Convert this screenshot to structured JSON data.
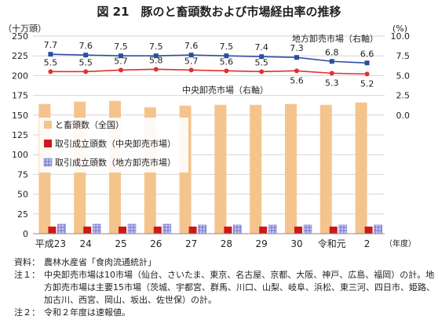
{
  "chart_data": {
    "type": "bar+line",
    "title": "図 21　豚のと畜頭数および市場経由率の推移",
    "left_axis_label": "（十万頭）",
    "right_axis_label": "(%)",
    "x_unit_label": "（年度）",
    "categories": [
      "平成23",
      "24",
      "25",
      "26",
      "27",
      "28",
      "29",
      "30",
      "令和元",
      "2"
    ],
    "left_axis": {
      "min": 0,
      "max": 250,
      "ticks": [
        0,
        25,
        50,
        75,
        100,
        125,
        150,
        175,
        200,
        225,
        250
      ]
    },
    "right_axis": {
      "min": -15,
      "max": 10,
      "ticks": [
        0.0,
        2.5,
        5.0,
        7.5,
        10.0
      ],
      "tick_labels": [
        "0.0",
        "2.5",
        "5.0",
        "7.5",
        "10.0"
      ]
    },
    "bars": [
      {
        "name": "と畜頭数（全国）",
        "color": "#f5c48c",
        "values": [
          164,
          167,
          168,
          160,
          162,
          163,
          163,
          164,
          163,
          166
        ]
      },
      {
        "name": "取引成立頭数（中央卸売市場）",
        "color": "#cc1a1a",
        "values": [
          9,
          9,
          9,
          9,
          9,
          9,
          9,
          9,
          9,
          9
        ]
      },
      {
        "name": "取引成立頭数（地方卸売市場）",
        "color": "#8f8fd8",
        "values": [
          12,
          12,
          12,
          12,
          11,
          11,
          11,
          11,
          11,
          11
        ]
      }
    ],
    "lines": [
      {
        "name": "地方卸売市場（右軸）",
        "color": "#2a4fa0",
        "marker": "square",
        "values": [
          7.7,
          7.6,
          7.5,
          7.5,
          7.6,
          7.5,
          7.4,
          7.3,
          6.8,
          6.6
        ],
        "labels": [
          "7.7",
          "7.6",
          "7.5",
          "7.5",
          "7.6",
          "7.5",
          "7.4",
          "7.3",
          "6.8",
          "6.6"
        ]
      },
      {
        "name": "中央卸売市場（右軸）",
        "color": "#e03030",
        "marker": "circle",
        "values": [
          5.5,
          5.5,
          5.7,
          5.8,
          5.7,
          5.6,
          5.5,
          5.6,
          5.3,
          5.2
        ],
        "labels": [
          "5.5",
          "5.5",
          "5.7",
          "5.8",
          "5.7",
          "5.6",
          "5.5",
          "5.6",
          "5.3",
          "5.2"
        ]
      }
    ],
    "legend_position": "left-middle"
  },
  "notes": {
    "source_label": "資料：",
    "source_text": "農林水産省「食肉流通統計」",
    "note1_label": "注１：",
    "note1_text": "中央卸売市場は10市場（仙台、さいたま、東京、名古屋、京都、大阪、神戸、広島、福岡）の計。地方卸売市場は主要15市場（茨城、宇都宮、群馬、川口、山梨、岐阜、浜松、東三河、四日市、姫路、加古川、西宮、岡山、坂出、佐世保）の計。",
    "note2_label": "注２：",
    "note2_text": "令和２年度は速報値。"
  }
}
